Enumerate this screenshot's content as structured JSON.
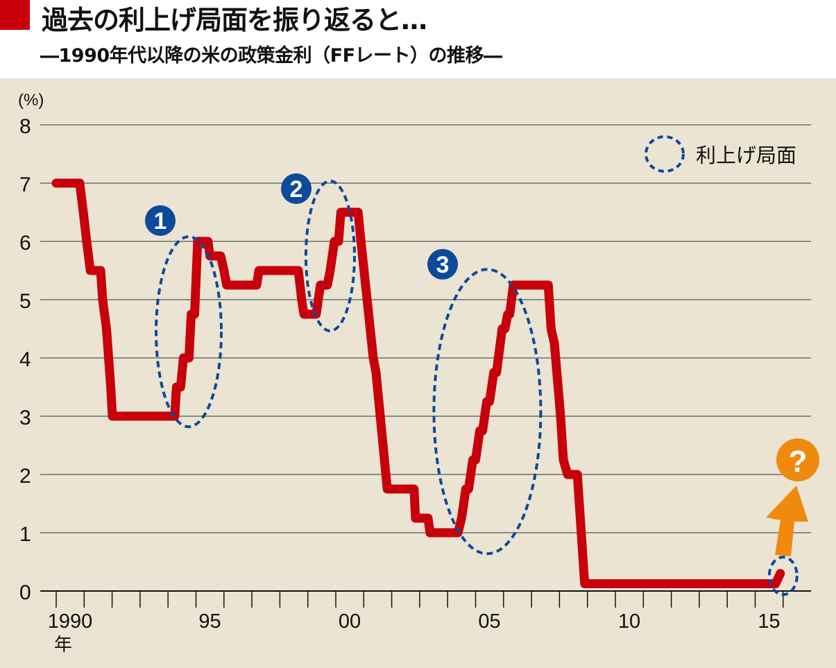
{
  "header": {
    "title": "過去の利上げ局面を振り返ると…",
    "subtitle": "―1990年代以降の米の政策金利（FFレート）の推移―"
  },
  "colors": {
    "background": "#ebe4d3",
    "line": "#c8000c",
    "ellipse": "#0d4a99",
    "badge": "#0d4a99",
    "question": "#ef8a0f",
    "grid": "#8d8a83",
    "title_block": "#c8000c"
  },
  "chart_data": {
    "type": "line",
    "title": "過去の利上げ局面を振り返ると…",
    "subtitle": "―1990年代以降の米の政策金利（FFレート）の推移―",
    "ylabel": "(%)",
    "xlabel": "",
    "x_unit_label": "年",
    "xlim": [
      1990,
      2017
    ],
    "ylim": [
      0,
      8
    ],
    "yticks": [
      0,
      1,
      2,
      3,
      4,
      5,
      6,
      7,
      8
    ],
    "xtick_labels": [
      {
        "year": 1990,
        "label": "1990"
      },
      {
        "year": 1995,
        "label": "95"
      },
      {
        "year": 2000,
        "label": "00"
      },
      {
        "year": 2005,
        "label": "05"
      },
      {
        "year": 2010,
        "label": "10"
      },
      {
        "year": 2015,
        "label": "15"
      }
    ],
    "grid": true,
    "step": "stepped line",
    "series": [
      {
        "points": [
          [
            1990.0,
            7
          ],
          [
            1990.84,
            7
          ],
          [
            1990.97,
            6.5
          ],
          [
            1991.09,
            6
          ],
          [
            1991.22,
            5.5
          ],
          [
            1991.59,
            5.5
          ],
          [
            1991.66,
            5
          ],
          [
            1991.8,
            4.5
          ],
          [
            1991.95,
            3.5
          ],
          [
            1992.01,
            3
          ],
          [
            1994.24,
            3
          ],
          [
            1994.3,
            3.5
          ],
          [
            1994.45,
            3.5
          ],
          [
            1994.55,
            4
          ],
          [
            1994.75,
            4
          ],
          [
            1994.83,
            4.75
          ],
          [
            1994.95,
            4.75
          ],
          [
            1995.06,
            6
          ],
          [
            1995.43,
            6
          ],
          [
            1995.5,
            5.75
          ],
          [
            1995.88,
            5.75
          ],
          [
            1996.0,
            5.5
          ],
          [
            1996.1,
            5.25
          ],
          [
            1997.17,
            5.25
          ],
          [
            1997.25,
            5.5
          ],
          [
            1998.66,
            5.5
          ],
          [
            1998.78,
            5.0
          ],
          [
            1998.86,
            4.75
          ],
          [
            1999.3,
            4.75
          ],
          [
            1999.45,
            5.25
          ],
          [
            1999.7,
            5.25
          ],
          [
            1999.8,
            5.5
          ],
          [
            1999.95,
            6
          ],
          [
            2000.1,
            6
          ],
          [
            2000.18,
            6.5
          ],
          [
            2000.8,
            6.5
          ],
          [
            2000.9,
            6.0
          ],
          [
            2001.34,
            4.0
          ],
          [
            2001.44,
            3.75
          ],
          [
            2001.84,
            1.75
          ],
          [
            2002.8,
            1.75
          ],
          [
            2002.85,
            1.25
          ],
          [
            2003.3,
            1.25
          ],
          [
            2003.37,
            1.0
          ],
          [
            2004.37,
            1.0
          ],
          [
            2004.5,
            1.25
          ],
          [
            2004.65,
            1.75
          ],
          [
            2004.75,
            1.75
          ],
          [
            2004.9,
            2.25
          ],
          [
            2005.0,
            2.25
          ],
          [
            2005.15,
            2.75
          ],
          [
            2005.25,
            2.75
          ],
          [
            2005.4,
            3.25
          ],
          [
            2005.5,
            3.25
          ],
          [
            2005.65,
            3.75
          ],
          [
            2005.75,
            3.75
          ],
          [
            2005.95,
            4.5
          ],
          [
            2006.05,
            4.5
          ],
          [
            2006.15,
            4.75
          ],
          [
            2006.22,
            4.75
          ],
          [
            2006.35,
            5.25
          ],
          [
            2007.6,
            5.25
          ],
          [
            2007.7,
            4.5
          ],
          [
            2007.82,
            4.25
          ],
          [
            2008.04,
            3.0
          ],
          [
            2008.14,
            2.25
          ],
          [
            2008.29,
            2.0
          ],
          [
            2008.64,
            2.0
          ],
          [
            2008.9,
            0.125
          ],
          [
            2015.73,
            0.125
          ],
          [
            2015.9,
            0.3
          ]
        ]
      }
    ],
    "annotations": {
      "badges": [
        "1",
        "2",
        "3"
      ],
      "legend_label": "利上げ局面",
      "legend_placement": "top-right",
      "question_mark": "?"
    }
  }
}
